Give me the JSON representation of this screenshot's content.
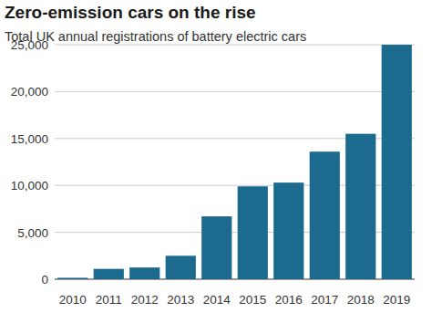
{
  "chart_data": {
    "type": "bar",
    "title": "Zero-emission cars on the rise",
    "subtitle": "Total UK annual registrations of battery electric cars",
    "categories": [
      "2010",
      "2011",
      "2012",
      "2013",
      "2014",
      "2015",
      "2016",
      "2017",
      "2018",
      "2019"
    ],
    "values": [
      150,
      1100,
      1250,
      2500,
      6700,
      9900,
      10300,
      13600,
      15500,
      25000
    ],
    "color": "#1c6b8e",
    "ylim": [
      0,
      25000
    ],
    "yticks": [
      0,
      {
        "value": 5000,
        "label": "5,000"
      },
      {
        "value": 10000,
        "label": "10,000"
      },
      {
        "value": 15000,
        "label": "15,000"
      },
      {
        "value": 20000,
        "label": "20,000"
      },
      {
        "value": 25000,
        "label": "25,000"
      }
    ],
    "grid": true
  }
}
